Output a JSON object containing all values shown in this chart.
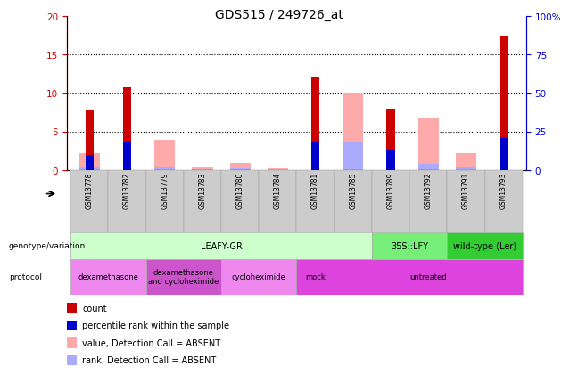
{
  "title": "GDS515 / 249726_at",
  "samples": [
    "GSM13778",
    "GSM13782",
    "GSM13779",
    "GSM13783",
    "GSM13780",
    "GSM13784",
    "GSM13781",
    "GSM13785",
    "GSM13789",
    "GSM13792",
    "GSM13791",
    "GSM13793"
  ],
  "count_values": [
    7.8,
    10.7,
    0,
    0,
    0,
    0,
    12.0,
    0,
    8.0,
    0,
    0,
    17.5
  ],
  "percentile_rank": [
    2.0,
    3.7,
    0,
    0,
    0,
    0,
    3.7,
    0,
    2.7,
    0,
    0,
    4.2
  ],
  "absent_value": [
    2.2,
    0,
    3.9,
    0.3,
    0.9,
    0.2,
    0,
    10.0,
    0,
    6.8,
    2.2,
    0
  ],
  "absent_rank": [
    0.3,
    0,
    0.5,
    0.1,
    0.2,
    0.05,
    0,
    3.7,
    0,
    0.8,
    0.5,
    0
  ],
  "ylim_left": [
    0,
    20
  ],
  "ylim_right": [
    0,
    100
  ],
  "yticks_left": [
    0,
    5,
    10,
    15,
    20
  ],
  "yticks_right": [
    0,
    25,
    50,
    75,
    100
  ],
  "ytick_labels_right": [
    "0",
    "25",
    "50",
    "75",
    "100%"
  ],
  "genotype_groups": [
    {
      "label": "LEAFY-GR",
      "start": 0,
      "end": 8,
      "color": "#ccffcc"
    },
    {
      "label": "35S::LFY",
      "start": 8,
      "end": 10,
      "color": "#77ee77"
    },
    {
      "label": "wild-type (Ler)",
      "start": 10,
      "end": 12,
      "color": "#33cc33"
    }
  ],
  "protocol_groups": [
    {
      "label": "dexamethasone",
      "start": 0,
      "end": 2,
      "color": "#ee88ee"
    },
    {
      "label": "dexamethasone\nand cycloheximide",
      "start": 2,
      "end": 4,
      "color": "#cc55cc"
    },
    {
      "label": "cycloheximide",
      "start": 4,
      "end": 6,
      "color": "#ee88ee"
    },
    {
      "label": "mock",
      "start": 6,
      "end": 7,
      "color": "#dd44dd"
    },
    {
      "label": "untreated",
      "start": 7,
      "end": 12,
      "color": "#dd44dd"
    }
  ],
  "colors": {
    "count": "#cc0000",
    "percentile": "#0000cc",
    "absent_value": "#ffaaaa",
    "absent_rank": "#aaaaff",
    "tick_left": "#cc0000",
    "tick_right": "#0000cc",
    "sample_bg": "#cccccc",
    "sample_border": "#999999"
  },
  "legend": [
    {
      "label": "count",
      "color": "#cc0000"
    },
    {
      "label": "percentile rank within the sample",
      "color": "#0000cc"
    },
    {
      "label": "value, Detection Call = ABSENT",
      "color": "#ffaaaa"
    },
    {
      "label": "rank, Detection Call = ABSENT",
      "color": "#aaaaff"
    }
  ]
}
